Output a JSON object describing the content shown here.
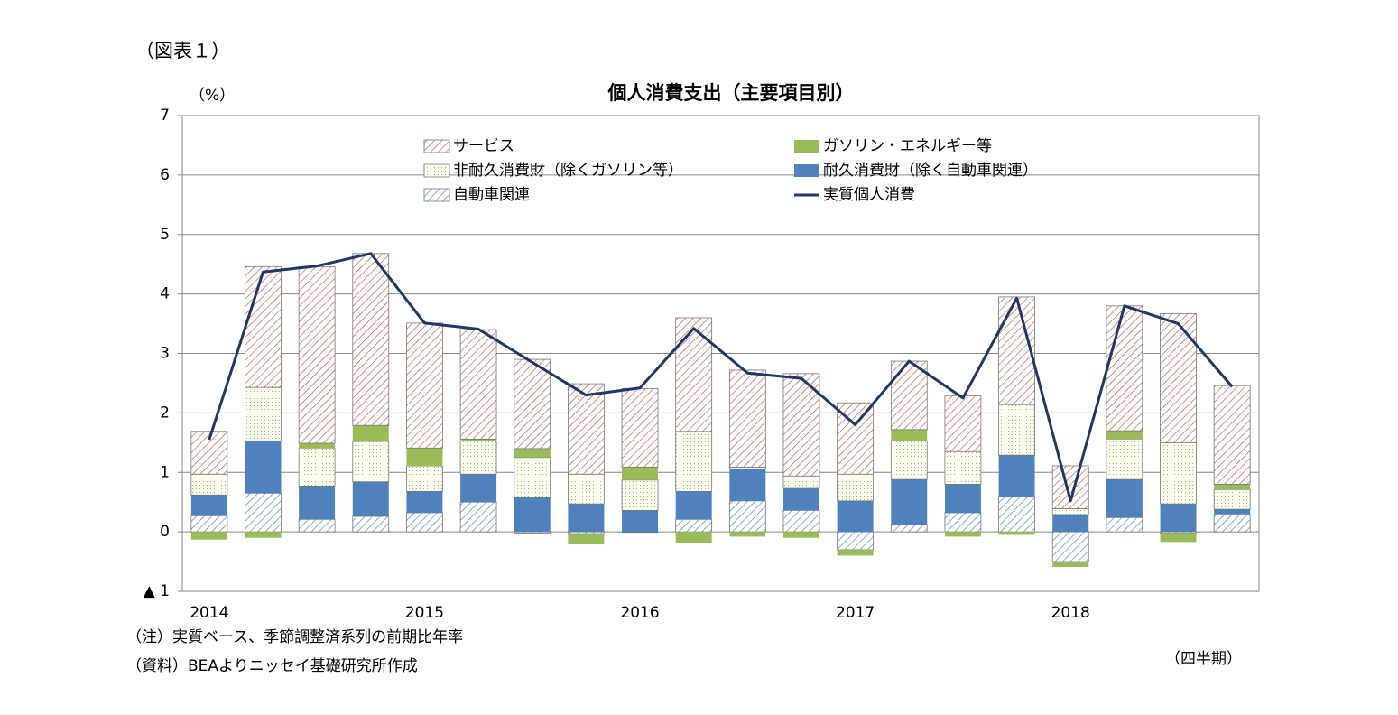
{
  "figure_label": "（図表１）",
  "chart_data": {
    "type": "bar",
    "title": "個人消費支出（主要項目別）",
    "y_unit": "（%）",
    "x_label": "（四半期）",
    "notes": [
      "（注）実質ベース、季節調整済系列の前期比年率",
      "（資料）BEAよりニッセイ基礎研究所作成"
    ],
    "categories": [
      "2014",
      null,
      null,
      null,
      "2015",
      null,
      null,
      null,
      "2016",
      null,
      null,
      null,
      "2017",
      null,
      null,
      null,
      "2018",
      null,
      null,
      null
    ],
    "ylim": [
      -1,
      7
    ],
    "yticks": [
      {
        "value": -1,
        "label": "▲ 1"
      },
      0,
      1,
      2,
      3,
      4,
      5,
      6,
      7
    ],
    "grid": true,
    "stacked": true,
    "series": [
      {
        "name": "自動車関連",
        "color": "#4f81bd",
        "pattern": "hatch",
        "values": [
          0.27,
          0.65,
          0.21,
          0.26,
          0.32,
          0.5,
          -0.02,
          -0.03,
          -0.01,
          0.21,
          0.52,
          0.36,
          -0.3,
          0.12,
          0.32,
          0.59,
          -0.5,
          0.24,
          -0.02,
          0.3
        ]
      },
      {
        "name": "耐久消費財（除く自動車関連）",
        "color": "#4f81bd",
        "pattern": "solid",
        "values": [
          0.35,
          0.88,
          0.56,
          0.58,
          0.36,
          0.47,
          0.58,
          0.47,
          0.36,
          0.47,
          0.54,
          0.37,
          0.52,
          0.76,
          0.48,
          0.7,
          0.29,
          0.64,
          0.47,
          0.08
        ]
      },
      {
        "name": "非耐久消費財（除くガソリン等）",
        "color": "#9bbb59",
        "pattern": "dots",
        "values": [
          0.35,
          0.9,
          0.64,
          0.68,
          0.43,
          0.56,
          0.67,
          0.5,
          0.51,
          1.01,
          0.03,
          0.21,
          0.45,
          0.65,
          0.55,
          0.85,
          0.1,
          0.68,
          1.03,
          0.33
        ]
      },
      {
        "name": "ガソリン・エネルギー等",
        "color": "#9bbb59",
        "pattern": "solid",
        "values": [
          -0.13,
          -0.1,
          0.08,
          0.27,
          0.3,
          0.03,
          0.15,
          -0.18,
          0.22,
          -0.19,
          -0.08,
          -0.1,
          -0.1,
          0.19,
          -0.08,
          -0.05,
          -0.09,
          0.14,
          -0.15,
          0.09
        ]
      },
      {
        "name": "サービス",
        "color": "#c0504d",
        "pattern": "hatch",
        "values": [
          0.72,
          2.03,
          2.97,
          2.89,
          2.1,
          1.84,
          1.5,
          1.52,
          1.32,
          1.91,
          1.63,
          1.72,
          1.2,
          1.15,
          0.94,
          1.81,
          0.72,
          2.1,
          2.17,
          1.66
        ]
      },
      {
        "name": "実質個人消費",
        "color": "#1f3864",
        "type": "line",
        "values": [
          1.55,
          4.37,
          4.47,
          4.68,
          3.51,
          3.41,
          2.85,
          2.3,
          2.42,
          3.42,
          2.67,
          2.58,
          1.8,
          2.87,
          2.25,
          3.93,
          0.52,
          3.8,
          3.5,
          2.44
        ]
      }
    ]
  }
}
